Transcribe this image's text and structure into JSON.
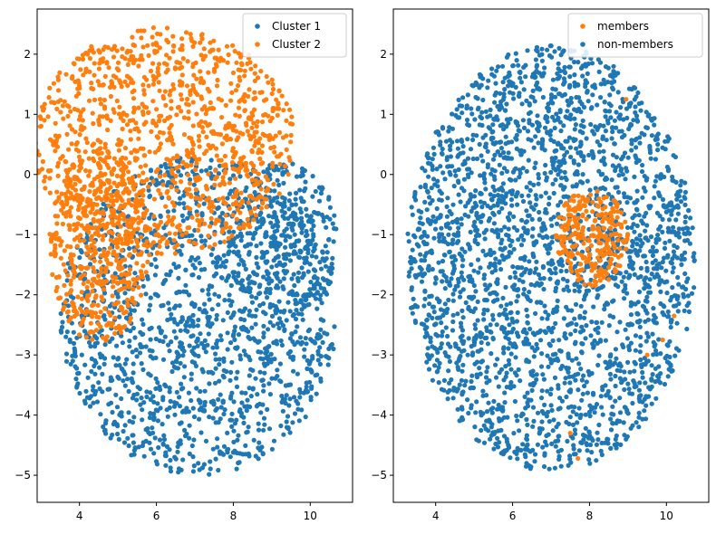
{
  "chart_data": [
    {
      "type": "scatter",
      "title": "",
      "xlabel": "",
      "ylabel": "",
      "xlim": [
        2.9,
        11.1
      ],
      "ylim": [
        -5.45,
        2.75
      ],
      "xticks": [
        4,
        6,
        8,
        10
      ],
      "yticks": [
        -5,
        -4,
        -3,
        -2,
        -1,
        0,
        1,
        2
      ],
      "xtick_labels": [
        "4",
        "6",
        "8",
        "10"
      ],
      "ytick_labels": [
        "−5",
        "−4",
        "−3",
        "−2",
        "−1",
        "0",
        "1",
        "2"
      ],
      "legend_position": "top-right",
      "series": [
        {
          "name": "Cluster 1",
          "color": "#1f77b4",
          "marker_count": 0,
          "regions": [
            {
              "shape": "ellipse",
              "cx": 7.1,
              "cy": -2.35,
              "rx": 3.6,
              "ry": 2.65,
              "fill_points": 1500
            },
            {
              "shape": "ellipse",
              "cx": 9.3,
              "cy": -1.1,
              "rx": 1.45,
              "ry": 1.3,
              "fill_points": 300
            }
          ]
        },
        {
          "name": "Cluster 2",
          "color": "#ff7f0e",
          "regions": [
            {
              "shape": "ellipse",
              "cx": 6.2,
              "cy": 0.55,
              "rx": 3.4,
              "ry": 1.9,
              "fill_points": 1100
            },
            {
              "shape": "ellipse",
              "cx": 4.5,
              "cy": -1.2,
              "rx": 1.3,
              "ry": 1.6,
              "fill_points": 500
            }
          ]
        }
      ],
      "legend": [
        {
          "label": "Cluster 1",
          "color": "#1f77b4"
        },
        {
          "label": "Cluster 2",
          "color": "#ff7f0e"
        }
      ]
    },
    {
      "type": "scatter",
      "title": "",
      "xlabel": "",
      "ylabel": "",
      "xlim": [
        2.9,
        11.1
      ],
      "ylim": [
        -5.45,
        2.75
      ],
      "xticks": [
        4,
        6,
        8,
        10
      ],
      "yticks": [
        -5,
        -4,
        -3,
        -2,
        -1,
        0,
        1,
        2
      ],
      "xtick_labels": [
        "4",
        "6",
        "8",
        "10"
      ],
      "ytick_labels": [
        "−5",
        "−4",
        "−3",
        "−2",
        "−1",
        "0",
        "1",
        "2"
      ],
      "legend_position": "top-right",
      "series": [
        {
          "name": "non-members",
          "color": "#1f77b4",
          "regions": [
            {
              "shape": "ellipse",
              "cx": 7.0,
              "cy": -1.4,
              "rx": 3.75,
              "ry": 3.55,
              "fill_points": 2600
            }
          ]
        },
        {
          "name": "members",
          "color": "#ff7f0e",
          "regions": [
            {
              "shape": "ellipse",
              "cx": 8.05,
              "cy": -1.05,
              "rx": 0.95,
              "ry": 0.8,
              "fill_points": 260
            }
          ],
          "extra_points": [
            [
              9.9,
              -2.75
            ],
            [
              10.2,
              -2.35
            ],
            [
              9.5,
              -3.0
            ],
            [
              8.95,
              1.25
            ],
            [
              7.7,
              -4.72
            ],
            [
              7.5,
              -4.3
            ]
          ]
        }
      ],
      "legend": [
        {
          "label": "members",
          "color": "#ff7f0e"
        },
        {
          "label": "non-members",
          "color": "#1f77b4"
        }
      ]
    }
  ]
}
